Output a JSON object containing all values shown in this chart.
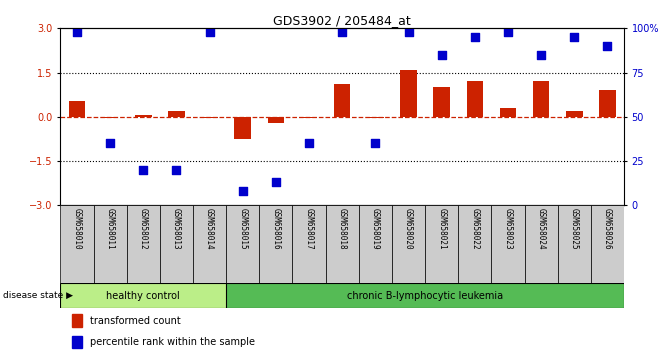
{
  "title": "GDS3902 / 205484_at",
  "samples": [
    "GSM658010",
    "GSM658011",
    "GSM658012",
    "GSM658013",
    "GSM658014",
    "GSM658015",
    "GSM658016",
    "GSM658017",
    "GSM658018",
    "GSM658019",
    "GSM658020",
    "GSM658021",
    "GSM658022",
    "GSM658023",
    "GSM658024",
    "GSM658025",
    "GSM658026"
  ],
  "transformed_count": [
    0.55,
    -0.05,
    0.05,
    0.2,
    -0.05,
    -0.75,
    -0.2,
    -0.05,
    1.1,
    -0.05,
    1.6,
    1.0,
    1.2,
    0.3,
    1.2,
    0.2,
    0.9
  ],
  "percentile_rank": [
    98,
    35,
    20,
    20,
    98,
    8,
    13,
    35,
    98,
    35,
    98,
    85,
    95,
    98,
    85,
    95,
    90
  ],
  "bar_color": "#cc2200",
  "dot_color": "#0000cc",
  "dotted_line_color": "#000000",
  "zero_line_color": "#cc2200",
  "ylim_left": [
    -3,
    3
  ],
  "ylim_right": [
    0,
    100
  ],
  "yticks_left": [
    -3,
    -1.5,
    0,
    1.5,
    3
  ],
  "yticks_right": [
    0,
    25,
    50,
    75,
    100
  ],
  "healthy_control_count": 5,
  "healthy_label": "healthy control",
  "leukemia_label": "chronic B-lymphocytic leukemia",
  "disease_state_label": "disease state",
  "legend_bar_label": "transformed count",
  "legend_dot_label": "percentile rank within the sample",
  "bg_healthy": "#bbee88",
  "bg_leukemia": "#55bb55",
  "bg_samples": "#cccccc",
  "bar_width": 0.5,
  "dot_size": 30
}
